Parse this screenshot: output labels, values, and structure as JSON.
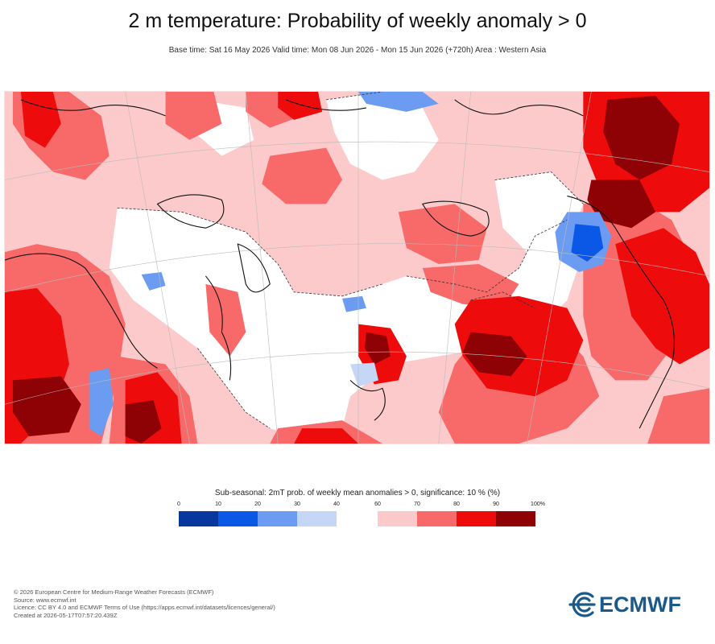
{
  "title": "2 m temperature: Probability of weekly anomaly > 0",
  "subtitle": "Base time: Sat 16 May 2026 Valid time: Mon 08 Jun 2026 - Mon 15 Jun 2026 (+720h) Area : Western Asia",
  "legend": {
    "title": "Sub-seasonal: 2mT prob. of weekly mean anomalies > 0, significance: 10 % (%)",
    "ticks": [
      "0",
      "10",
      "20",
      "30",
      "40",
      "60",
      "70",
      "80",
      "90",
      "100%"
    ],
    "bins": [
      {
        "range": "0-10",
        "color": "#08379e"
      },
      {
        "range": "10-20",
        "color": "#0b57e6"
      },
      {
        "range": "20-30",
        "color": "#6c9cf2"
      },
      {
        "range": "30-40",
        "color": "#c6d6f6"
      },
      {
        "range": "60-70",
        "color": "#fccaca"
      },
      {
        "range": "70-80",
        "color": "#f86a6a"
      },
      {
        "range": "80-90",
        "color": "#ee0b0b"
      },
      {
        "range": "90-100",
        "color": "#8e0206"
      }
    ]
  },
  "footer": {
    "line1": "© 2026 European Centre for Medium-Range Weather Forecasts (ECMWF)",
    "line2": "Source: www.ecmwf.int",
    "line3": "Licence: CC BY 4.0 and ECMWF Terms of Use (https://apps.ecmwf.int/datasets/licences/general/)",
    "line4": "Created at 2026-05-17T07:57:20.439Z"
  },
  "logo": {
    "text": "ECMWF",
    "icon": "ecmwf-swirl-icon",
    "color": "#1a5a8a"
  }
}
